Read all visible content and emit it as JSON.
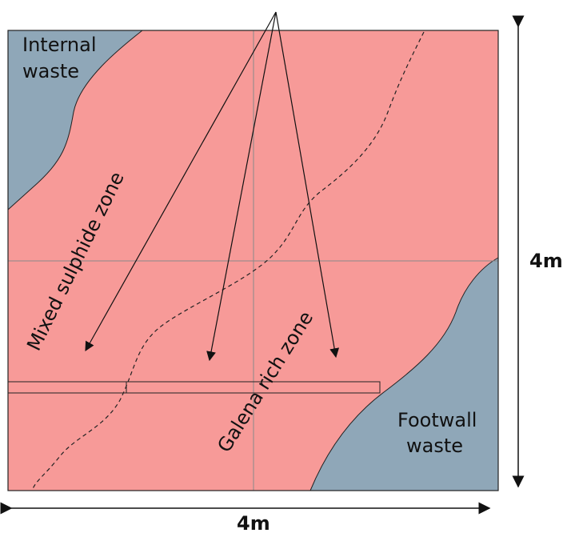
{
  "zones": {
    "internal_waste": [
      "Internal",
      "waste"
    ],
    "footwall_waste": [
      "Footwall",
      "waste"
    ],
    "mixed_sulphide": "Mixed sulphide zone",
    "galena_rich": "Galena rich zone"
  },
  "dimensions": {
    "width": "4m",
    "height": "4m"
  },
  "colors": {
    "ore": "#f79a98",
    "waste": "#8fa7b8",
    "outline": "#222222",
    "grid": "#8a8a8a"
  }
}
